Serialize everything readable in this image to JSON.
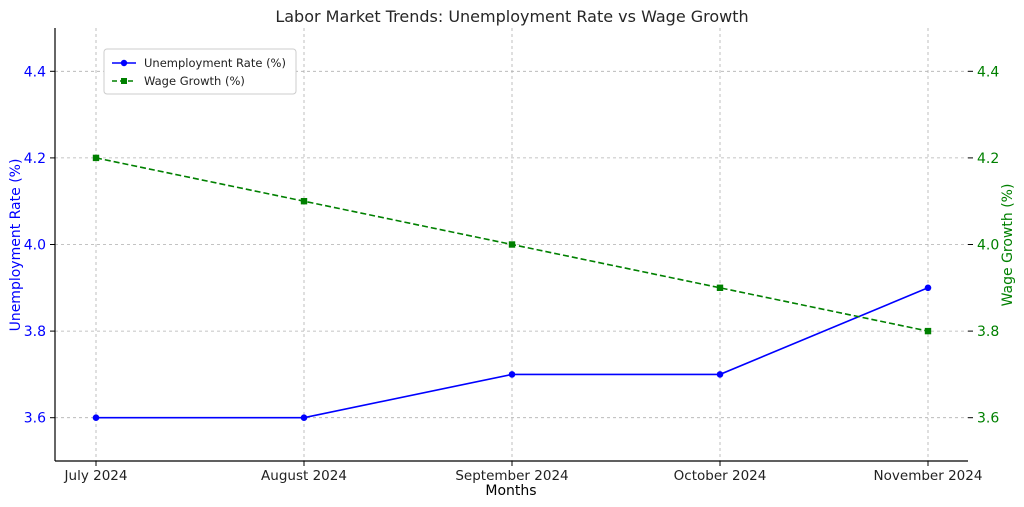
{
  "chart_data": {
    "type": "line",
    "title": "Labor Market Trends: Unemployment Rate vs Wage Growth",
    "xlabel": "Months",
    "ylabel_left": "Unemployment Rate (%)",
    "ylabel_right": "Wage Growth (%)",
    "categories": [
      "July 2024",
      "August 2024",
      "September 2024",
      "October 2024",
      "November 2024"
    ],
    "ylim_left": [
      3.5,
      4.5
    ],
    "ylim_right": [
      3.5,
      4.5
    ],
    "yticks_left": [
      "3.6",
      "3.8",
      "4.0",
      "4.2",
      "4.4"
    ],
    "yticks_right": [
      "3.6",
      "3.8",
      "4.0",
      "4.2",
      "4.4"
    ],
    "grid": true,
    "legend_position": "top-left",
    "series": [
      {
        "name": "Unemployment Rate (%)",
        "axis": "left",
        "values": [
          3.6,
          3.6,
          3.7,
          3.7,
          3.9
        ],
        "color": "#0000ff",
        "line_style": "solid",
        "marker": "circle"
      },
      {
        "name": "Wage Growth (%)",
        "axis": "right",
        "values": [
          4.2,
          4.1,
          4.0,
          3.9,
          3.8
        ],
        "color": "#008000",
        "line_style": "dashed",
        "marker": "square"
      }
    ]
  }
}
